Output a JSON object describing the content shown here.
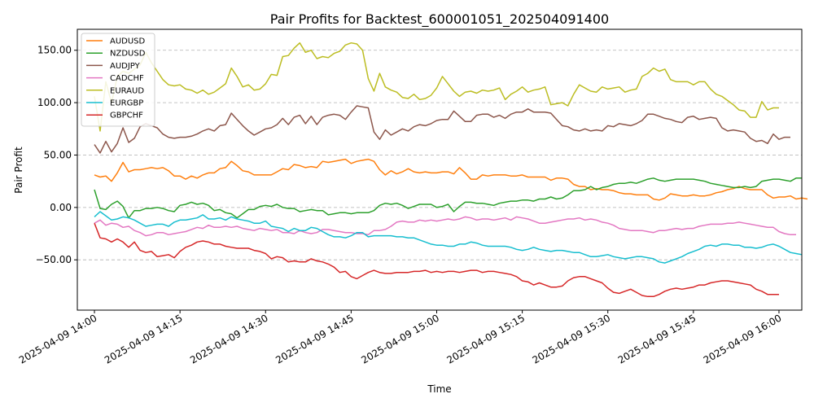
{
  "chart_data": {
    "type": "line",
    "title": "Pair Profits for Backtest_600001051_202504091400",
    "xlabel": "Time",
    "ylabel": "Pair Profit",
    "xlim": [
      "2025-04-09 13:57",
      "2025-04-09 16:04"
    ],
    "ylim": [
      -98,
      170
    ],
    "grid": "y",
    "legend_position": "top-left",
    "x_ticks": [
      "2025-04-09 14:00",
      "2025-04-09 14:15",
      "2025-04-09 14:30",
      "2025-04-09 14:45",
      "2025-04-09 15:00",
      "2025-04-09 15:15",
      "2025-04-09 15:30",
      "2025-04-09 15:45",
      "2025-04-09 16:00"
    ],
    "y_ticks": [
      -50,
      0,
      50,
      100,
      150
    ],
    "y_tick_labels": [
      "−50.00",
      "0.00",
      "50.00",
      "100.00",
      "150.00"
    ],
    "start": "2025-04-09 14:00",
    "step_minutes": 1,
    "series": [
      {
        "name": "AUDUSD",
        "color": "#ff7f0e",
        "values": [
          31,
          29,
          30,
          25,
          33,
          43,
          34,
          36,
          36,
          37,
          38,
          37,
          38,
          35,
          30,
          30,
          27,
          30,
          28,
          31,
          33,
          33,
          37,
          38,
          44,
          40,
          35,
          34,
          31,
          31,
          31,
          31,
          34,
          37,
          36,
          41,
          40,
          38,
          39,
          38,
          44,
          43,
          44,
          45,
          46,
          42,
          44,
          45,
          46,
          44,
          36,
          31,
          35,
          32,
          34,
          37,
          34,
          33,
          34,
          33,
          33,
          34,
          34,
          32,
          38,
          33,
          27,
          27,
          31,
          30,
          31,
          31,
          31,
          30,
          30,
          31,
          29,
          29,
          29,
          29,
          26,
          28,
          28,
          27,
          22,
          20,
          20,
          17,
          18,
          17,
          17,
          16,
          14,
          13,
          13,
          12,
          12,
          12,
          8,
          7,
          9,
          13,
          12,
          11,
          11,
          12,
          11,
          11,
          12,
          14,
          15,
          17,
          18,
          20,
          18,
          17,
          17,
          17,
          12,
          9,
          10,
          10,
          11,
          8,
          9,
          8
        ]
      },
      {
        "name": "NZDUSD",
        "color": "#2ca02c",
        "values": [
          17,
          -1,
          -2,
          3,
          6,
          1,
          -10,
          -3,
          -3,
          -1,
          -1,
          0,
          -1,
          -3,
          -4,
          2,
          3,
          5,
          3,
          4,
          2,
          -3,
          -2,
          -5,
          -6,
          -10,
          -6,
          -2,
          -2,
          1,
          2,
          1,
          3,
          0,
          -1,
          -1,
          -4,
          -3,
          -2,
          -3,
          -3,
          -7,
          -6,
          -5,
          -5,
          -6,
          -5,
          -5,
          -5,
          -3,
          2,
          4,
          3,
          4,
          2,
          -1,
          1,
          3,
          3,
          3,
          0,
          1,
          3,
          -4,
          1,
          5,
          5,
          4,
          4,
          3,
          2,
          4,
          5,
          6,
          6,
          7,
          7,
          6,
          8,
          8,
          10,
          8,
          9,
          12,
          16,
          16,
          17,
          20,
          17,
          19,
          20,
          22,
          23,
          23,
          24,
          23,
          25,
          27,
          28,
          26,
          25,
          26,
          27,
          27,
          27,
          27,
          26,
          25,
          23,
          22,
          21,
          20,
          19,
          19,
          20,
          19,
          20,
          25,
          26,
          27,
          27,
          26,
          25,
          28,
          28
        ]
      },
      {
        "name": "AUDJPY",
        "color": "#8c564b",
        "values": [
          60,
          52,
          63,
          53,
          61,
          76,
          62,
          66,
          77,
          80,
          78,
          76,
          70,
          67,
          66,
          67,
          67,
          68,
          70,
          73,
          75,
          73,
          78,
          79,
          90,
          84,
          78,
          73,
          69,
          72,
          75,
          76,
          79,
          85,
          79,
          86,
          88,
          80,
          87,
          79,
          86,
          88,
          89,
          88,
          84,
          91,
          97,
          96,
          95,
          72,
          65,
          74,
          69,
          72,
          75,
          73,
          77,
          79,
          78,
          80,
          83,
          84,
          84,
          92,
          87,
          82,
          82,
          88,
          89,
          89,
          86,
          88,
          85,
          89,
          91,
          91,
          94,
          91,
          91,
          91,
          90,
          84,
          78,
          77,
          74,
          73,
          75,
          73,
          74,
          73,
          78,
          77,
          80,
          79,
          78,
          80,
          83,
          89,
          89,
          87,
          85,
          84,
          82,
          81,
          86,
          87,
          84,
          85,
          86,
          85,
          76,
          73,
          74,
          73,
          72,
          66,
          63,
          64,
          61,
          70,
          65,
          67,
          67
        ]
      },
      {
        "name": "CADCHF",
        "color": "#e377c2",
        "values": [
          -15,
          -12,
          -17,
          -15,
          -16,
          -19,
          -18,
          -22,
          -24,
          -27,
          -26,
          -24,
          -24,
          -26,
          -25,
          -24,
          -23,
          -21,
          -19,
          -20,
          -17,
          -19,
          -19,
          -18,
          -19,
          -18,
          -20,
          -21,
          -22,
          -20,
          -21,
          -22,
          -21,
          -24,
          -24,
          -25,
          -22,
          -24,
          -25,
          -24,
          -21,
          -21,
          -22,
          -23,
          -24,
          -24,
          -25,
          -25,
          -26,
          -22,
          -22,
          -21,
          -18,
          -14,
          -13,
          -14,
          -14,
          -12,
          -13,
          -12,
          -13,
          -12,
          -11,
          -12,
          -11,
          -9,
          -10,
          -12,
          -11,
          -11,
          -12,
          -11,
          -10,
          -12,
          -9,
          -10,
          -11,
          -13,
          -15,
          -15,
          -14,
          -13,
          -12,
          -11,
          -11,
          -10,
          -12,
          -11,
          -12,
          -14,
          -15,
          -17,
          -20,
          -21,
          -22,
          -22,
          -22,
          -23,
          -24,
          -22,
          -22,
          -21,
          -20,
          -21,
          -20,
          -20,
          -18,
          -17,
          -16,
          -16,
          -16,
          -15,
          -15,
          -14,
          -15,
          -16,
          -17,
          -18,
          -19,
          -19,
          -23,
          -25,
          -26,
          -26
        ]
      },
      {
        "name": "EURAUD",
        "color": "#bcbd22",
        "values": [
          106,
          73,
          120,
          100,
          125,
          130,
          128,
          132,
          136,
          148,
          138,
          130,
          122,
          117,
          116,
          117,
          113,
          112,
          109,
          112,
          108,
          110,
          114,
          118,
          133,
          125,
          115,
          117,
          112,
          113,
          118,
          127,
          126,
          144,
          145,
          152,
          157,
          148,
          150,
          142,
          144,
          143,
          147,
          149,
          155,
          157,
          156,
          150,
          123,
          111,
          128,
          115,
          112,
          110,
          105,
          104,
          108,
          103,
          104,
          107,
          114,
          125,
          118,
          111,
          106,
          110,
          111,
          109,
          112,
          111,
          112,
          114,
          103,
          108,
          111,
          115,
          110,
          112,
          113,
          115,
          98,
          99,
          100,
          97,
          108,
          117,
          114,
          111,
          110,
          115,
          113,
          114,
          115,
          110,
          112,
          113,
          125,
          128,
          133,
          130,
          132,
          122,
          120,
          120,
          120,
          117,
          120,
          120,
          113,
          108,
          106,
          102,
          98,
          93,
          92,
          86,
          86,
          101,
          93,
          95,
          95
        ]
      },
      {
        "name": "EURGBP",
        "color": "#17becf",
        "values": [
          -9,
          -4,
          -8,
          -12,
          -11,
          -9,
          -10,
          -12,
          -15,
          -18,
          -17,
          -16,
          -16,
          -18,
          -14,
          -12,
          -12,
          -11,
          -10,
          -7,
          -11,
          -11,
          -10,
          -12,
          -9,
          -11,
          -12,
          -13,
          -15,
          -15,
          -13,
          -18,
          -19,
          -20,
          -23,
          -20,
          -22,
          -22,
          -19,
          -20,
          -23,
          -26,
          -28,
          -28,
          -29,
          -27,
          -24,
          -24,
          -28,
          -27,
          -27,
          -27,
          -27,
          -28,
          -28,
          -29,
          -29,
          -31,
          -33,
          -35,
          -36,
          -36,
          -37,
          -37,
          -35,
          -35,
          -33,
          -34,
          -36,
          -37,
          -37,
          -37,
          -37,
          -38,
          -40,
          -41,
          -40,
          -38,
          -40,
          -41,
          -42,
          -41,
          -41,
          -42,
          -43,
          -43,
          -45,
          -47,
          -47,
          -46,
          -45,
          -47,
          -48,
          -49,
          -48,
          -47,
          -47,
          -48,
          -49,
          -52,
          -53,
          -51,
          -49,
          -47,
          -44,
          -42,
          -40,
          -37,
          -36,
          -37,
          -35,
          -35,
          -36,
          -36,
          -38,
          -38,
          -39,
          -38,
          -36,
          -35,
          -37,
          -40,
          -43,
          -44,
          -45
        ]
      },
      {
        "name": "GBPCHF",
        "color": "#d62728",
        "values": [
          -15,
          -29,
          -30,
          -33,
          -30,
          -33,
          -38,
          -33,
          -41,
          -43,
          -42,
          -47,
          -46,
          -45,
          -48,
          -42,
          -38,
          -36,
          -33,
          -32,
          -33,
          -35,
          -35,
          -37,
          -38,
          -39,
          -39,
          -39,
          -41,
          -42,
          -44,
          -49,
          -47,
          -48,
          -52,
          -51,
          -52,
          -52,
          -49,
          -51,
          -52,
          -54,
          -57,
          -62,
          -61,
          -66,
          -68,
          -65,
          -62,
          -60,
          -62,
          -63,
          -63,
          -62,
          -62,
          -62,
          -61,
          -61,
          -60,
          -62,
          -61,
          -62,
          -61,
          -61,
          -62,
          -61,
          -60,
          -60,
          -62,
          -61,
          -61,
          -62,
          -63,
          -64,
          -66,
          -70,
          -71,
          -74,
          -72,
          -74,
          -76,
          -76,
          -75,
          -70,
          -67,
          -66,
          -66,
          -68,
          -70,
          -72,
          -77,
          -81,
          -82,
          -80,
          -78,
          -81,
          -84,
          -85,
          -85,
          -83,
          -80,
          -78,
          -77,
          -78,
          -77,
          -76,
          -74,
          -74,
          -72,
          -71,
          -70,
          -70,
          -71,
          -72,
          -73,
          -74,
          -78,
          -80,
          -83,
          -83,
          -83
        ]
      }
    ]
  }
}
